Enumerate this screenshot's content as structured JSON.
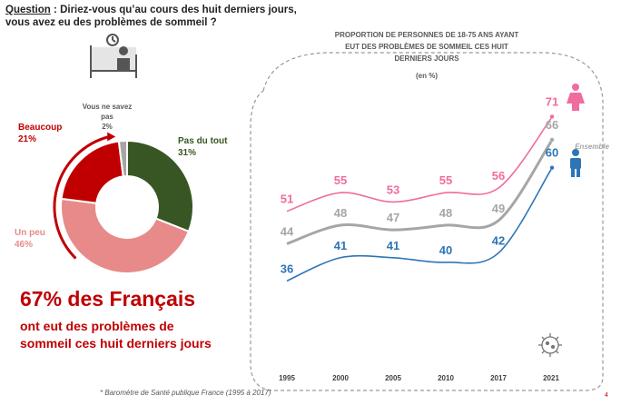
{
  "question": {
    "label": "Question",
    "line1": " : Diriez-vous qu’au cours des huit derniers jours,",
    "line2": "vous avez eu des problèmes de sommeil ?"
  },
  "headline": {
    "big": "67% des Français",
    "sub1": "ont eut des problèmes de",
    "sub2": "sommeil ces huit derniers jours"
  },
  "source": "* Baromètre de Santé publique France (1995 à 2017)",
  "page_number": "4",
  "chart_data": [
    {
      "type": "pie",
      "donut": true,
      "slices": [
        {
          "label": "Pas du tout",
          "value": 31,
          "value_label": "31%",
          "color": "#375623"
        },
        {
          "label": "Un peu",
          "value": 46,
          "value_label": "46%",
          "color": "#e88a8a"
        },
        {
          "label": "Beaucoup",
          "value": 21,
          "value_label": "21%",
          "color": "#c00000"
        },
        {
          "label_lines": [
            "Vous ne savez",
            "pas"
          ],
          "value": 2,
          "value_label": "2%",
          "color": "#a6a6a6"
        }
      ]
    },
    {
      "type": "line",
      "title_lines": [
        "PROPORTION DE PERSONNES DE 18-75 ANS AYANT",
        "EUT DES PROBLÈMES DE SOMMEIL CES HUIT",
        "DERNIERS JOURS"
      ],
      "unit": "(en %)",
      "categories": [
        "1995",
        "2000",
        "2005",
        "2010",
        "2017",
        "2021"
      ],
      "ylim": [
        30,
        75
      ],
      "series": [
        {
          "key": "femmes",
          "values": [
            51,
            55,
            53,
            55,
            56,
            71
          ],
          "color": "#f06ca0"
        },
        {
          "name": "Ensemble",
          "values": [
            44,
            48,
            47,
            48,
            49,
            66
          ],
          "color": "#a6a6a6"
        },
        {
          "key": "hommes",
          "values": [
            36,
            41,
            41,
            40,
            42,
            60
          ],
          "color": "#2e75b6"
        }
      ]
    }
  ]
}
